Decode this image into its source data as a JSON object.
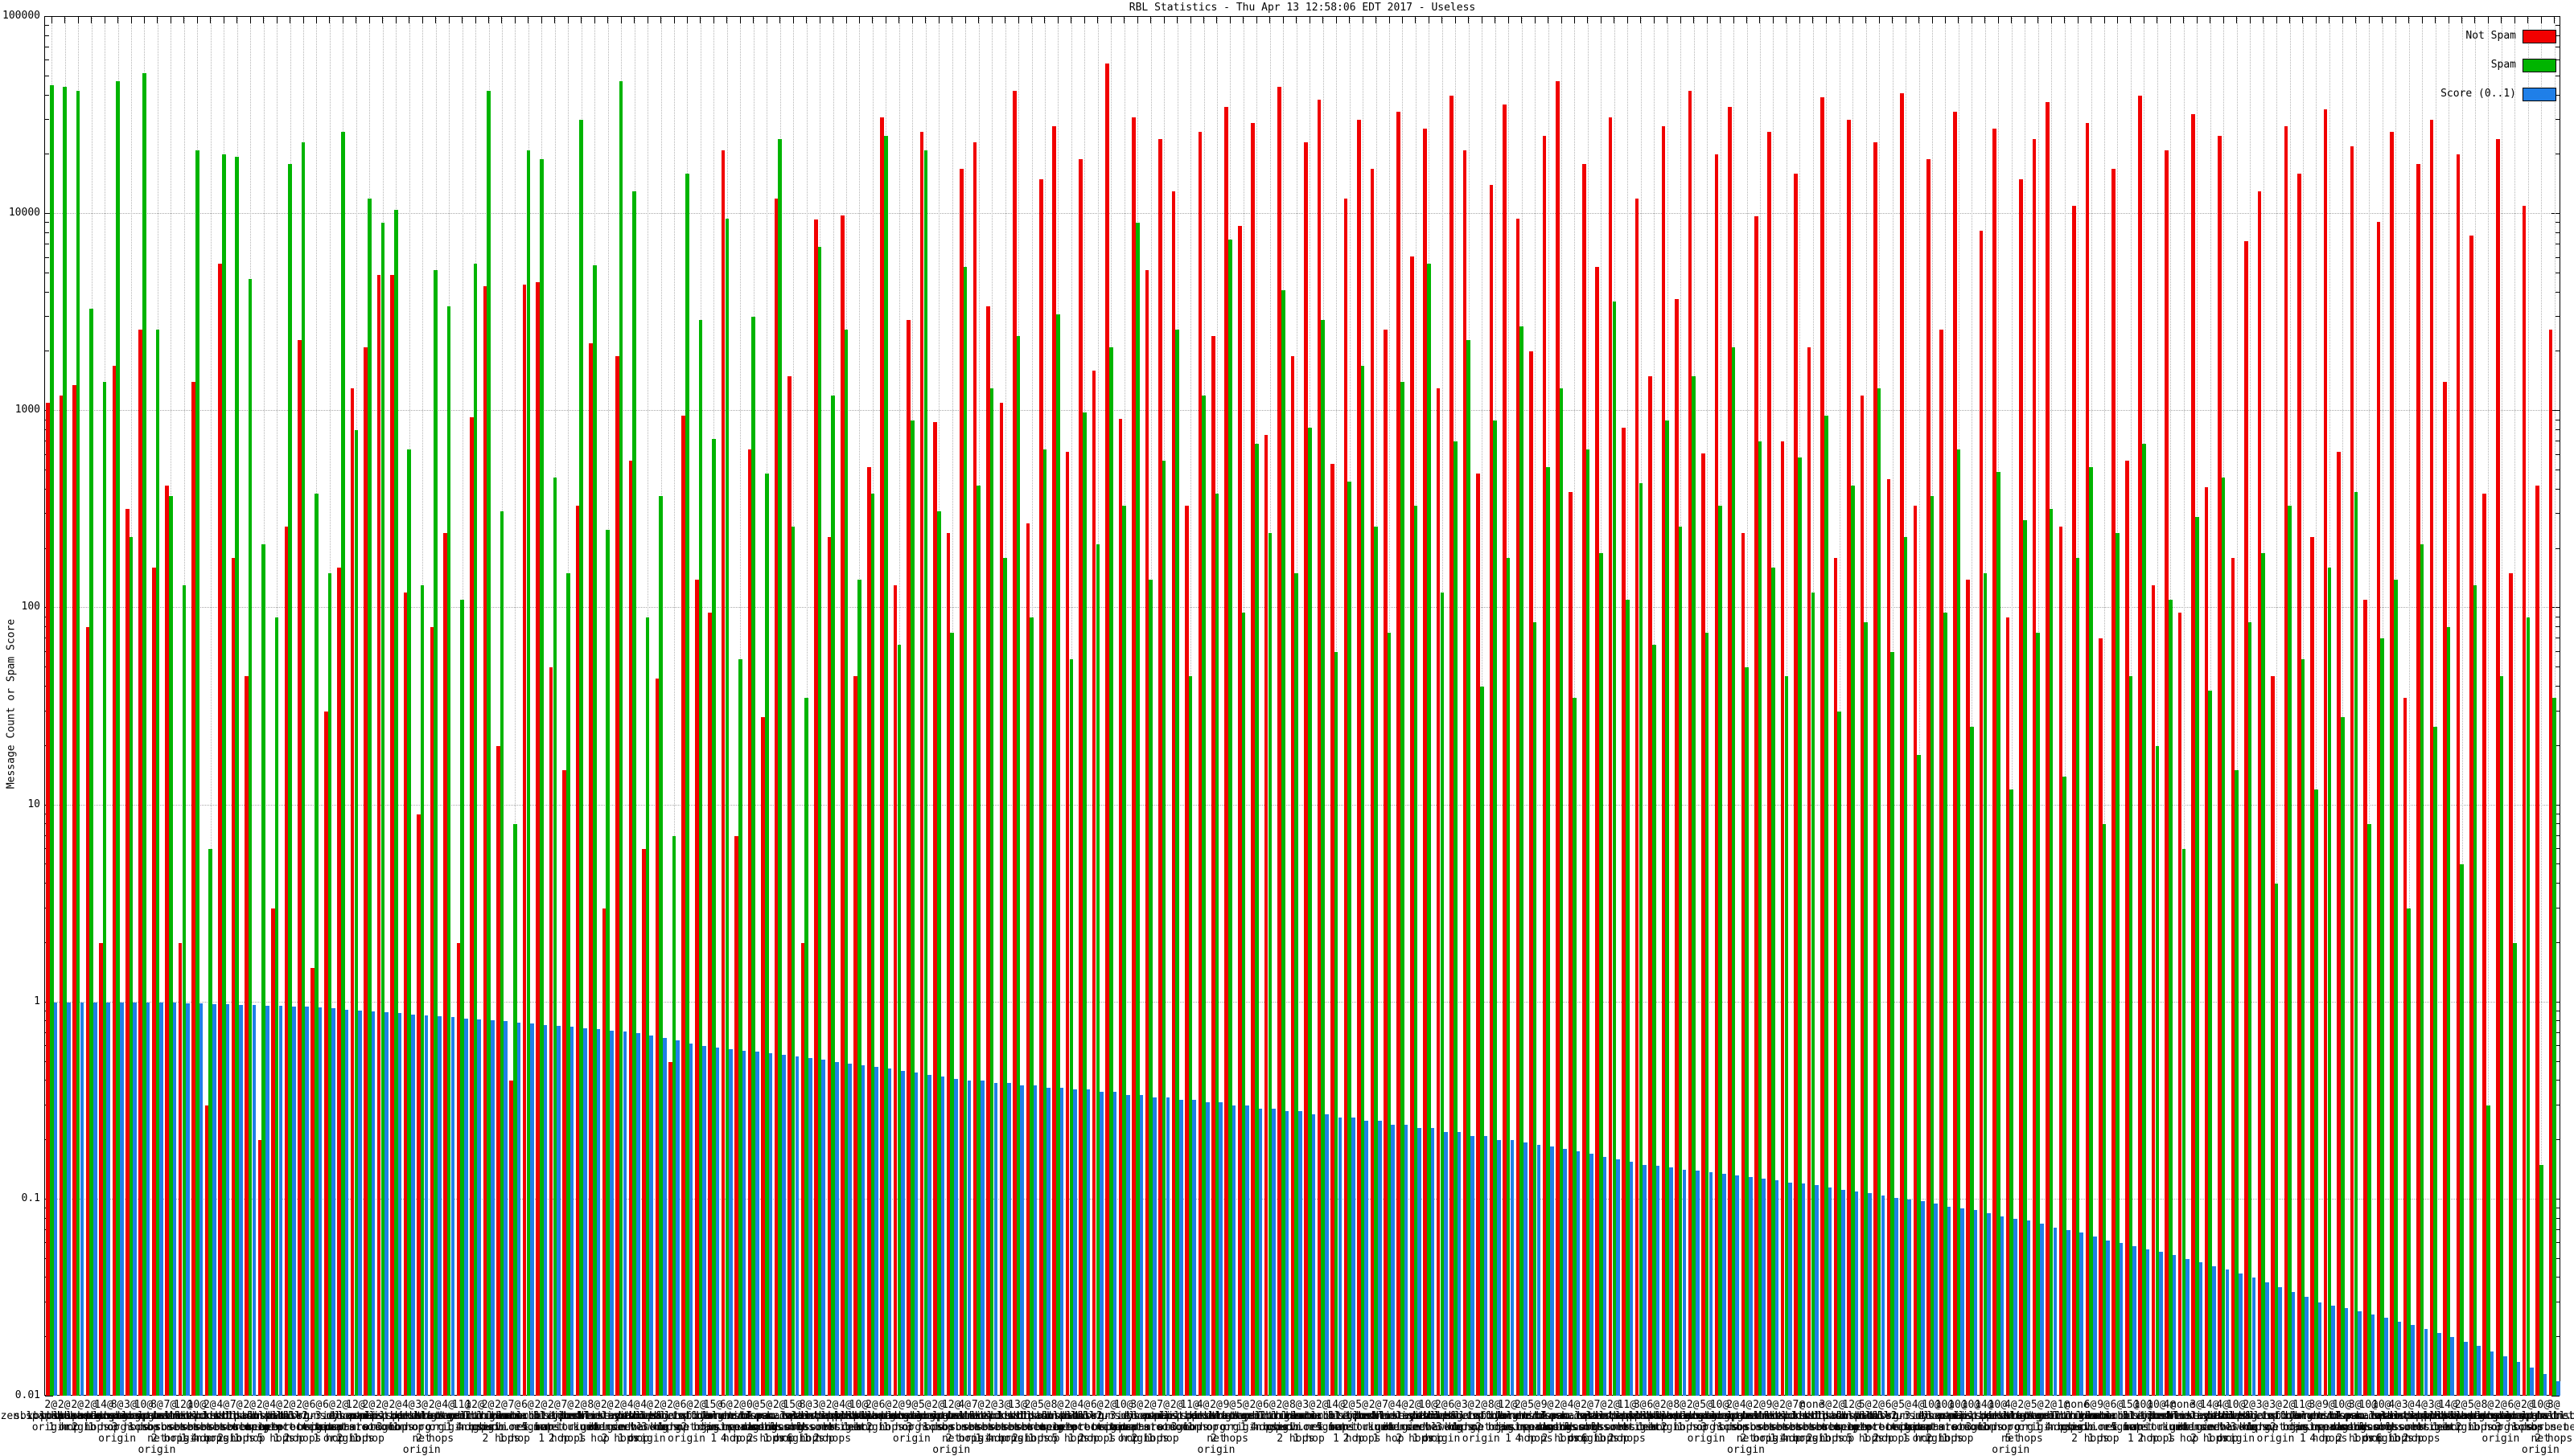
{
  "title": "RBL Statistics - Thu Apr 13 12:58:06 EDT 2017 - Useless",
  "y_axis": {
    "label": "Message Count or Spam Score",
    "scale": "log",
    "min": 0.01,
    "max": 100000,
    "tick_labels": [
      "100000",
      "10000",
      "1000",
      "100",
      "10",
      "1",
      "0.1",
      "0.01"
    ]
  },
  "legend": [
    {
      "label": "Not Spam",
      "color": "#f10000"
    },
    {
      "label": "Spam",
      "color": "#00b400"
    },
    {
      "label": "Score (0..1)",
      "color": "#1f7fe8"
    }
  ],
  "chart_data": {
    "type": "bar",
    "ylim": [
      0.01,
      100000
    ],
    "grid": true,
    "legend_position": "top-right",
    "xlabel": "",
    "ylabel": "Message Count or Spam Score",
    "series": [
      {
        "name": "Not Spam",
        "key": "not_spam",
        "color": "#f10000"
      },
      {
        "name": "Spam",
        "key": "spam",
        "color": "#00b400"
      },
      {
        "name": "Score (0..1)",
        "key": "score",
        "color": "#1f7fe8"
      }
    ],
    "count_at": [
      "2@",
      "2@",
      "2@",
      "2@",
      "14@",
      "8@",
      "3@",
      "10@",
      "8@",
      "7@",
      "12@",
      "10@",
      "2@",
      "4@",
      "7@",
      "2@",
      "2@",
      "4@",
      "2@",
      "2@",
      "6@",
      "6@",
      "2@",
      "12@",
      "2@",
      "2@",
      "2@",
      "4@",
      "3@",
      "2@",
      "4@",
      "11@",
      "12@",
      "2@",
      "2@",
      "7@",
      "6@",
      "2@",
      "2@",
      "7@",
      "2@",
      "8@",
      "2@",
      "2@",
      "4@",
      "4@",
      "2@",
      "2@",
      "6@",
      "2@",
      "15@",
      "6@",
      "2@",
      "0@",
      "5@",
      "2@",
      "15@",
      "8@",
      "3@",
      "2@",
      "4@",
      "10@",
      "2@",
      "6@",
      "2@",
      "9@",
      "5@",
      "2@",
      "12@",
      "4@",
      "7@",
      "2@",
      "3@",
      "13@",
      "2@",
      "5@",
      "8@",
      "2@",
      "4@",
      "6@",
      "2@",
      "10@",
      "3@",
      "2@",
      "7@",
      "2@",
      "11@",
      "4@",
      "2@",
      "9@",
      "5@",
      "2@",
      "6@",
      "2@",
      "8@",
      "3@",
      "2@",
      "14@",
      "2@",
      "5@",
      "2@",
      "7@",
      "4@",
      "2@",
      "10@",
      "2@",
      "6@",
      "3@",
      "2@",
      "8@",
      "12@",
      "2@",
      "5@",
      "9@",
      "2@",
      "4@",
      "2@",
      "7@",
      "2@",
      "11@",
      "3@",
      "6@",
      "2@",
      "8@",
      "2@",
      "5@",
      "10@",
      "2@",
      "4@",
      "2@",
      "9@",
      "2@",
      "7@",
      "none",
      "3@",
      "2@",
      "12@",
      "5@",
      "2@",
      "6@",
      "5@",
      "4@",
      "10@",
      "10@",
      "10@",
      "10@",
      "14@",
      "10@",
      "4@",
      "2@",
      "5@",
      "2@",
      "1@",
      "none",
      "6@",
      "9@",
      "6@",
      "15@",
      "10@",
      "10@",
      "4@",
      "none",
      "3@",
      "14@",
      "4@",
      "10@",
      "2@",
      "3@",
      "3@",
      "2@",
      "11@",
      "3@",
      "9@",
      "10@",
      "3@",
      "10@",
      "10@",
      "4@",
      "3@",
      "4@",
      "3@",
      "14@",
      "2@",
      "5@",
      "8@",
      "2@",
      "6@",
      "2@",
      "10@",
      "3@"
    ],
    "rbl": [
      "zen.spamhaus.org",
      "sbl.spamhaus.org",
      "xbl.spamhaus.org",
      "pbl.spamhaus.org",
      "dbl.spamhaus.org",
      "b.barracudacentral.org",
      "bl.spamcop.net",
      "dnsbl.sorbs.net",
      "dul.dnsbl.sorbs.net",
      "spam.dnsbl.sorbs.net",
      "web.dnsbl.sorbs.net",
      "zombie.dnsbl.sorbs.net",
      "smtp.dnsbl.sorbs.net",
      "socks.dnsbl.sorbs.net",
      "misc.dnsbl.sorbs.net",
      "http.dnsbl.sorbs.net",
      "cbl.abuseat.org",
      "dnsbl-1.uceprotect.net",
      "dnsbl-2.uceprotect.net",
      "dnsbl-3.uceprotect.net",
      "psbl.surriel.com",
      "ubl.unsubscore.com",
      "dyna.spamrats.com",
      "noptr.spamrats.com",
      "spam.spamrats.com",
      "bl.mailspike.net",
      "z.mailspike.net",
      "list.dnswl.org",
      "ips.backscatterer.org",
      "opm.tornevall.org",
      "multi.surbl.org",
      "black.uribl.com",
      "grey.uribl.com",
      "red.uribl.com",
      "truncate.gbudb.net",
      "korea.services.net",
      "virus.rbl.jp",
      "wormrbl.imp.ch",
      "rbl.interserver.net",
      "ix.dnsbl.manitu.net",
      "bl.blocklist.de",
      "st.technovision.dk",
      "dnsbl.kempt.net",
      "relays.bl.kundenserver.de",
      "dnsbl.dronebl.org",
      "access.redhawk.org",
      "db.wpbl.info",
      "rbl.efnetrbl.org",
      "dnsbl.spfbl.net",
      "bogons.cymru.com",
      "tor.dan.me.uk",
      "torexit.dan.me.uk",
      "dnsbl.justspam.org",
      "bl.nordspam.com",
      "spam.pedantic.org",
      "block.dnsbl.sorbs.net",
      "escalations.dnsbl.sorbs.net",
      "new.spam.dnsbl.sorbs.net",
      "recent.spam.dnsbl.sorbs.net",
      "old.spam.dnsbl.sorbs.net",
      "zen.spamhaus.org",
      "sbl.spamhaus.org",
      "xbl.spamhaus.org",
      "pbl.spamhaus.org",
      "dbl.spamhaus.org",
      "b.barracudacentral.org",
      "bl.spamcop.net",
      "dnsbl.sorbs.net",
      "dul.dnsbl.sorbs.net",
      "spam.dnsbl.sorbs.net",
      "web.dnsbl.sorbs.net",
      "zombie.dnsbl.sorbs.net",
      "smtp.dnsbl.sorbs.net",
      "socks.dnsbl.sorbs.net",
      "misc.dnsbl.sorbs.net",
      "http.dnsbl.sorbs.net",
      "cbl.abuseat.org",
      "dnsbl-1.uceprotect.net",
      "dnsbl-2.uceprotect.net",
      "dnsbl-3.uceprotect.net",
      "psbl.surriel.com",
      "ubl.unsubscore.com",
      "dyna.spamrats.com",
      "noptr.spamrats.com",
      "spam.spamrats.com",
      "bl.mailspike.net",
      "z.mailspike.net",
      "list.dnswl.org",
      "ips.backscatterer.org",
      "opm.tornevall.org",
      "multi.surbl.org",
      "black.uribl.com",
      "grey.uribl.com",
      "red.uribl.com",
      "truncate.gbudb.net",
      "korea.services.net",
      "virus.rbl.jp",
      "wormrbl.imp.ch",
      "rbl.interserver.net",
      "ix.dnsbl.manitu.net",
      "bl.blocklist.de",
      "st.technovision.dk",
      "dnsbl.kempt.net",
      "relays.bl.kundenserver.de",
      "dnsbl.dronebl.org",
      "access.redhawk.org",
      "db.wpbl.info",
      "rbl.efnetrbl.org",
      "dnsbl.spfbl.net",
      "bogons.cymru.com",
      "tor.dan.me.uk",
      "torexit.dan.me.uk",
      "dnsbl.justspam.org",
      "bl.nordspam.com",
      "spam.pedantic.org",
      "block.dnsbl.sorbs.net",
      "escalations.dnsbl.sorbs.net",
      "new.spam.dnsbl.sorbs.net",
      "recent.spam.dnsbl.sorbs.net",
      "old.spam.dnsbl.sorbs.net",
      "zen.spamhaus.org",
      "sbl.spamhaus.org",
      "xbl.spamhaus.org",
      "pbl.spamhaus.org",
      "dbl.spamhaus.org",
      "b.barracudacentral.org",
      "bl.spamcop.net",
      "dnsbl.sorbs.net",
      "dul.dnsbl.sorbs.net",
      "spam.dnsbl.sorbs.net",
      "web.dnsbl.sorbs.net",
      "zombie.dnsbl.sorbs.net",
      "smtp.dnsbl.sorbs.net",
      "socks.dnsbl.sorbs.net",
      "misc.dnsbl.sorbs.net",
      "http.dnsbl.sorbs.net",
      "cbl.abuseat.org",
      "dnsbl-1.uceprotect.net",
      "dnsbl-2.uceprotect.net",
      "dnsbl-3.uceprotect.net",
      "psbl.surriel.com",
      "ubl.unsubscore.com",
      "dyna.spamrats.com",
      "noptr.spamrats.com",
      "spam.spamrats.com",
      "bl.mailspike.net",
      "z.mailspike.net",
      "list.dnswl.org",
      "ips.backscatterer.org",
      "opm.tornevall.org",
      "multi.surbl.org",
      "black.uribl.com",
      "grey.uribl.com",
      "red.uribl.com",
      "truncate.gbudb.net",
      "korea.services.net",
      "virus.rbl.jp",
      "wormrbl.imp.ch",
      "rbl.interserver.net",
      "ix.dnsbl.manitu.net",
      "bl.blocklist.de",
      "st.technovision.dk",
      "dnsbl.kempt.net",
      "relays.bl.kundenserver.de",
      "dnsbl.dronebl.org",
      "access.redhawk.org",
      "db.wpbl.info",
      "rbl.efnetrbl.org",
      "dnsbl.spfbl.net",
      "bogons.cymru.com",
      "tor.dan.me.uk",
      "torexit.dan.me.uk",
      "dnsbl.justspam.org",
      "bl.nordspam.com",
      "spam.pedantic.org",
      "block.dnsbl.sorbs.net",
      "escalations.dnsbl.sorbs.net",
      "new.spam.dnsbl.sorbs.net",
      "recent.spam.dnsbl.sorbs.net",
      "old.spam.dnsbl.sorbs.net",
      "zen.spamhaus.org",
      "sbl.spamhaus.org",
      "xbl.spamhaus.org",
      "pbl.spamhaus.org",
      "dbl.spamhaus.org",
      "b.barracudacentral.org",
      "bl.spamcop.net",
      "dnsbl.sorbs.net",
      "dul.dnsbl.sorbs.net",
      "spam.dnsbl.sorbs.net"
    ],
    "hops": [
      "origin",
      "1 hop",
      "origin",
      "2 hops",
      "1 hop",
      "origin",
      "3 hops",
      "1 hop",
      "net origin",
      "2 hops",
      "origin",
      "1 hop",
      "4 hops",
      "origin",
      "2 hops",
      "1 hop",
      "origin",
      "5 hops",
      "1 hop",
      "2 hops",
      "origin",
      "1 hop",
      "origin",
      "2 hops",
      "1 hop",
      "origin",
      "3 hops",
      "1 hop",
      "net origin",
      "2 hops",
      "origin",
      "1 hop",
      "4 hops",
      "origin",
      "2 hops",
      "1 hop",
      "origin",
      "5 hops",
      "1 hop",
      "2 hops",
      "origin",
      "1 hop",
      "origin",
      "2 hops",
      "1 hop",
      "origin",
      "3 hops",
      "1 hop",
      "net origin",
      "2 hops",
      "origin",
      "1 hop",
      "4 hops",
      "origin",
      "2 hops",
      "1 hop",
      "origin",
      "6 hops",
      "1 hop",
      "2 hops",
      "origin",
      "1 hop",
      "origin",
      "2 hops",
      "1 hop",
      "origin",
      "3 hops",
      "1 hop",
      "net origin",
      "2 hops",
      "origin",
      "1 hop",
      "4 hops",
      "origin",
      "2 hops",
      "1 hop",
      "origin",
      "5 hops",
      "1 hop",
      "2 hops",
      "origin",
      "1 hop",
      "origin",
      "2 hops",
      "1 hop",
      "origin",
      "3 hops",
      "1 hop",
      "net origin",
      "2 hops",
      "origin",
      "1 hop",
      "4 hops",
      "origin",
      "2 hops",
      "1 hop",
      "origin",
      "5 hops",
      "1 hop",
      "2 hops",
      "origin",
      "1 hop",
      "origin",
      "2 hops",
      "1 hop",
      "origin",
      "3 hops",
      "1 hop",
      "net origin",
      "2 hops",
      "origin",
      "1 hop",
      "4 hops",
      "origin",
      "2 hops",
      "1 hop",
      "origin",
      "6 hops",
      "1 hop",
      "2 hops",
      "origin",
      "1 hop",
      "origin",
      "2 hops",
      "1 hop",
      "origin",
      "3 hops",
      "1 hop",
      "net origin",
      "2 hops",
      "origin",
      "1 hop",
      "4 hops",
      "origin",
      "2 hops",
      "1 hop",
      "origin",
      "5 hops",
      "1 hop",
      "2 hops",
      "origin",
      "1 hop",
      "origin",
      "2 hops",
      "1 hop",
      "origin",
      "3 hops",
      "1 hop",
      "net origin",
      "5 hops",
      "origin",
      "1 hop",
      "4 hops",
      "origin",
      "2 hops",
      "1 hop",
      "origin",
      "5 hops",
      "1 hop",
      "2 hops",
      "origin",
      "1 hop",
      "origin",
      "2 hops",
      "1 hop",
      "origin",
      "3 hops",
      "1 hop",
      "net origin",
      "2 hops",
      "origin",
      "1 hop",
      "4 hops",
      "origin",
      "2 hops",
      "1 hop",
      "origin",
      "6 hops",
      "1 hop",
      "2 hops",
      "origin",
      "1 hop",
      "origin",
      "2 hops",
      "1 hop",
      "origin",
      "3 hops",
      "1 hop",
      "net origin",
      "2 hops"
    ],
    "not_spam": [
      1100,
      1200,
      1350,
      80,
      2,
      1700,
      320,
      2600,
      160,
      420,
      2,
      1400,
      0.3,
      5600,
      180,
      45,
      0.2,
      3,
      260,
      2300,
      1.5,
      30,
      160,
      1300,
      2100,
      4900,
      4900,
      120,
      9,
      80,
      240,
      2,
      930,
      4300,
      20,
      0.4,
      4400,
      4500,
      50,
      15,
      330,
      2200,
      3,
      1900,
      560,
      6,
      44,
      0.5,
      950,
      140,
      95,
      21000,
      7,
      640,
      28,
      12000,
      1500,
      2,
      9400,
      230,
      9800,
      45,
      520,
      31000,
      130,
      2900,
      26000,
      880,
      240,
      17000,
      23000,
      3400,
      1100,
      42000,
      270,
      15000,
      28000,
      620,
      19000,
      1600,
      58000,
      910,
      31000,
      5200,
      24000,
      13000,
      330,
      26000,
      2400,
      35000,
      8700,
      29000,
      760,
      44000,
      1900,
      23000,
      38000,
      540,
      12000,
      30000,
      17000,
      2600,
      33000,
      6100,
      27000,
      1300,
      40000,
      21000,
      480,
      14000,
      36000,
      9500,
      2000,
      25000,
      47000,
      390,
      18000,
      5400,
      31000,
      820,
      12000,
      1500,
      28000,
      3700,
      42000,
      610,
      20000,
      35000,
      240,
      9700,
      26000,
      700,
      16000,
      2100,
      39000,
      180,
      30000,
      1200,
      23000,
      450,
      41000,
      330,
      19000,
      2600,
      33000,
      140,
      8200,
      27000,
      90,
      15000,
      24000,
      37000,
      260,
      11000,
      29000,
      70,
      17000,
      560,
      40000,
      130,
      21000,
      95,
      32000,
      410,
      25000,
      180,
      7300,
      13000,
      45,
      28000,
      16000,
      230,
      34000,
      620,
      22000,
      110,
      9100,
      26000,
      35,
      18000,
      30000,
      1400,
      20000,
      7800,
      380,
      24000,
      150,
      11000,
      420,
      2600
    ],
    "spam": [
      45000,
      44000,
      42000,
      3300,
      1400,
      47000,
      230,
      52000,
      2600,
      370,
      130,
      21000,
      6,
      20000,
      19500,
      4700,
      210,
      90,
      18000,
      23000,
      380,
      150,
      26000,
      800,
      12000,
      9000,
      10500,
      640,
      130,
      5200,
      3400,
      110,
      5600,
      42000,
      310,
      8,
      21000,
      19000,
      460,
      150,
      30000,
      5500,
      250,
      47000,
      13000,
      90,
      370,
      7,
      16000,
      2900,
      720,
      9500,
      55,
      3000,
      480,
      24000,
      260,
      35,
      6800,
      1200,
      2600,
      140,
      380,
      25000,
      65,
      900,
      21000,
      310,
      75,
      5400,
      420,
      1300,
      180,
      2400,
      90,
      640,
      3100,
      55,
      980,
      210,
      2100,
      330,
      9000,
      140,
      560,
      2600,
      45,
      1200,
      380,
      7400,
      95,
      680,
      240,
      4100,
      150,
      820,
      2900,
      60,
      440,
      1700,
      260,
      75,
      1400,
      330,
      5600,
      120,
      700,
      2300,
      40,
      900,
      180,
      2700,
      85,
      520,
      1300,
      35,
      640,
      190,
      3600,
      110,
      430,
      65,
      900,
      260,
      1500,
      75,
      330,
      2100,
      50,
      700,
      160,
      45,
      580,
      120,
      950,
      30,
      420,
      85,
      1300,
      60,
      230,
      18,
      370,
      95,
      640,
      25,
      150,
      490,
      12,
      280,
      75,
      320,
      14,
      180,
      520,
      8,
      240,
      45,
      680,
      20,
      110,
      6,
      290,
      38,
      460,
      15,
      85,
      190,
      4,
      330,
      55,
      12,
      160,
      28,
      390,
      8,
      70,
      140,
      3,
      210,
      25,
      80,
      5,
      130,
      0.3,
      45,
      2,
      90,
      0.15,
      35
    ],
    "score": [
      1.0,
      1.0,
      1.0,
      1.0,
      1.0,
      1.0,
      1.0,
      1.0,
      1.0,
      1.0,
      0.99,
      0.99,
      0.98,
      0.98,
      0.97,
      0.97,
      0.96,
      0.96,
      0.95,
      0.95,
      0.94,
      0.93,
      0.92,
      0.91,
      0.9,
      0.89,
      0.88,
      0.87,
      0.86,
      0.85,
      0.84,
      0.83,
      0.82,
      0.81,
      0.8,
      0.79,
      0.78,
      0.77,
      0.76,
      0.75,
      0.74,
      0.73,
      0.72,
      0.71,
      0.7,
      0.68,
      0.66,
      0.64,
      0.62,
      0.6,
      0.59,
      0.58,
      0.57,
      0.56,
      0.55,
      0.54,
      0.53,
      0.52,
      0.51,
      0.5,
      0.49,
      0.48,
      0.47,
      0.46,
      0.45,
      0.44,
      0.43,
      0.42,
      0.41,
      0.4,
      0.4,
      0.39,
      0.39,
      0.38,
      0.38,
      0.37,
      0.37,
      0.36,
      0.36,
      0.35,
      0.35,
      0.34,
      0.34,
      0.33,
      0.33,
      0.32,
      0.32,
      0.31,
      0.31,
      0.3,
      0.3,
      0.29,
      0.29,
      0.28,
      0.28,
      0.27,
      0.27,
      0.26,
      0.26,
      0.25,
      0.25,
      0.24,
      0.24,
      0.23,
      0.23,
      0.22,
      0.22,
      0.21,
      0.21,
      0.2,
      0.2,
      0.195,
      0.19,
      0.185,
      0.18,
      0.175,
      0.17,
      0.165,
      0.16,
      0.155,
      0.15,
      0.148,
      0.145,
      0.142,
      0.14,
      0.138,
      0.135,
      0.132,
      0.13,
      0.128,
      0.125,
      0.122,
      0.12,
      0.118,
      0.115,
      0.112,
      0.11,
      0.108,
      0.105,
      0.102,
      0.1,
      0.098,
      0.095,
      0.092,
      0.09,
      0.088,
      0.085,
      0.082,
      0.08,
      0.078,
      0.075,
      0.072,
      0.07,
      0.068,
      0.065,
      0.062,
      0.06,
      0.058,
      0.056,
      0.054,
      0.052,
      0.05,
      0.048,
      0.046,
      0.044,
      0.042,
      0.04,
      0.038,
      0.036,
      0.034,
      0.032,
      0.03,
      0.029,
      0.028,
      0.027,
      0.026,
      0.025,
      0.024,
      0.023,
      0.022,
      0.021,
      0.02,
      0.019,
      0.018,
      0.017,
      0.016,
      0.015,
      0.014,
      0.013,
      0.012
    ]
  }
}
